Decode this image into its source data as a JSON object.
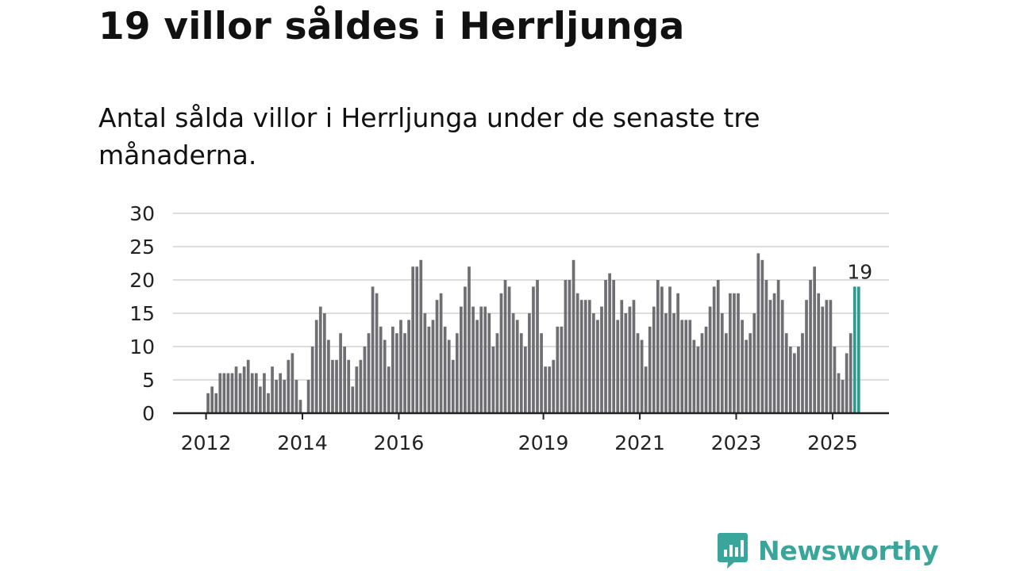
{
  "headline": "19 villor såldes i Herrljunga",
  "subtitle": "Antal sålda villor i Herrljunga under de senaste tre månaderna.",
  "brand": {
    "name": "Newsworthy",
    "icon": "bar-chart-speech-bubble-icon",
    "color": "#3aa59a"
  },
  "chart_data": {
    "type": "bar",
    "ylim": [
      0,
      30
    ],
    "yticks": [
      0,
      5,
      10,
      15,
      20,
      25,
      30
    ],
    "grid": true,
    "bar_color": "#6e6e73",
    "highlight_color": "#2a9d8f",
    "x_start": "2012-01",
    "xticks": [
      "2012",
      "2014",
      "2016",
      "2019",
      "2021",
      "2023",
      "2025"
    ],
    "values": [
      3,
      4,
      3,
      6,
      6,
      6,
      6,
      7,
      6,
      7,
      8,
      6,
      6,
      4,
      6,
      3,
      7,
      5,
      6,
      5,
      8,
      9,
      5,
      2,
      0,
      5,
      10,
      14,
      16,
      15,
      11,
      8,
      8,
      12,
      10,
      8,
      4,
      7,
      8,
      10,
      12,
      19,
      18,
      13,
      11,
      7,
      13,
      12,
      14,
      12,
      14,
      22,
      22,
      23,
      15,
      13,
      14,
      17,
      18,
      13,
      11,
      8,
      12,
      16,
      19,
      22,
      16,
      14,
      16,
      16,
      15,
      10,
      12,
      18,
      20,
      19,
      15,
      14,
      12,
      10,
      15,
      19,
      20,
      12,
      7,
      7,
      8,
      13,
      13,
      20,
      20,
      23,
      18,
      17,
      17,
      17,
      15,
      14,
      16,
      20,
      21,
      20,
      14,
      17,
      15,
      16,
      17,
      12,
      11,
      7,
      13,
      16,
      20,
      19,
      15,
      19,
      15,
      18,
      14,
      14,
      14,
      11,
      10,
      12,
      13,
      16,
      19,
      20,
      15,
      12,
      18,
      18,
      18,
      14,
      11,
      12,
      15,
      24,
      23,
      20,
      17,
      18,
      20,
      17,
      12,
      10,
      9,
      10,
      12,
      17,
      20,
      22,
      18,
      16,
      17,
      17,
      10,
      6,
      5,
      9,
      12,
      19,
      19
    ],
    "highlight_last": 2,
    "annotations": [
      {
        "text": "19"
      }
    ]
  }
}
